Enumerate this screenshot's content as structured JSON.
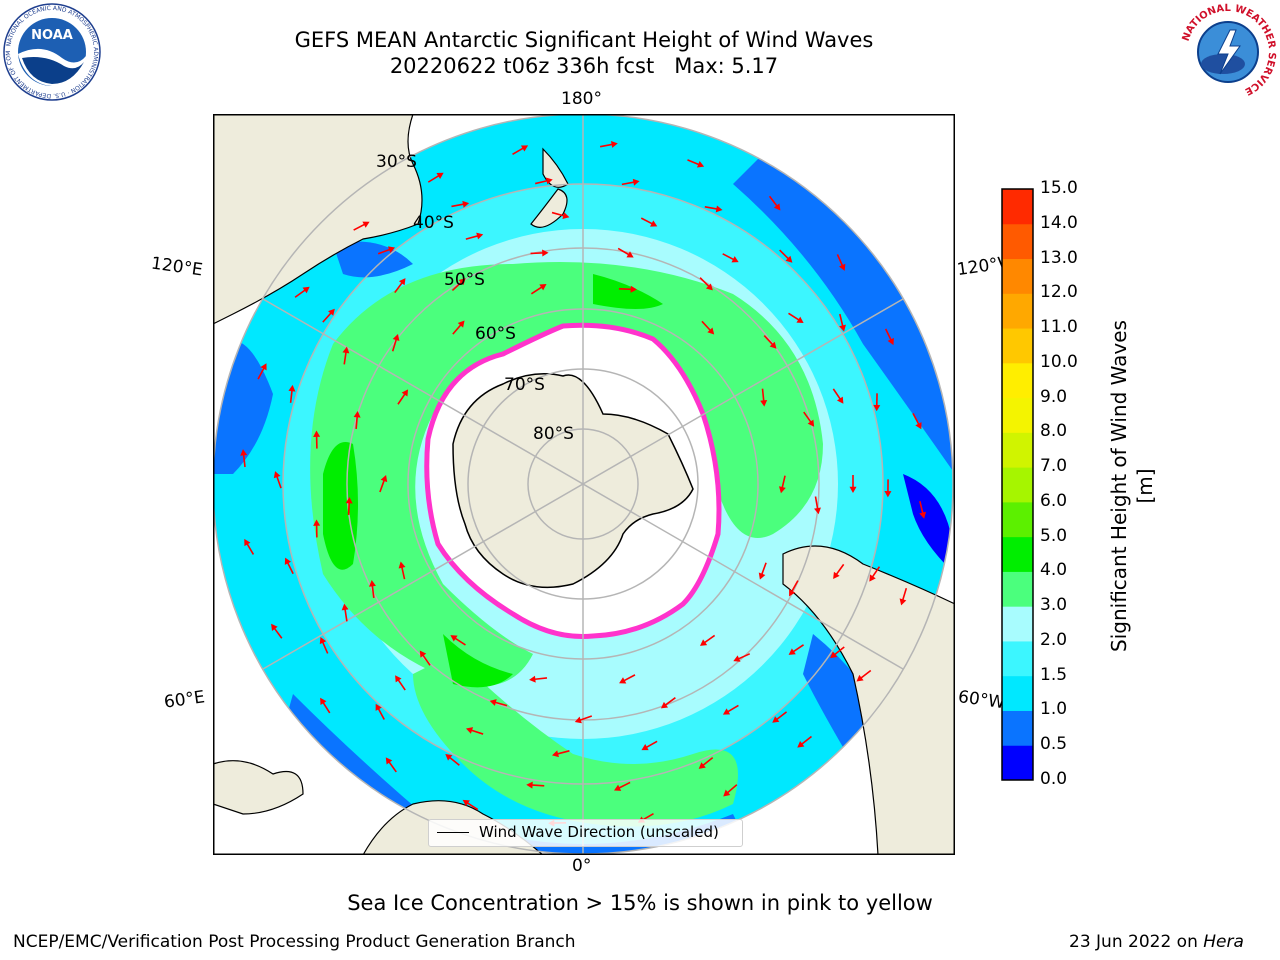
{
  "title": {
    "line1": "GEFS MEAN Antarctic Significant Height of Wind Waves",
    "line2": "20220622 t06z 336h fcst   Max: 5.17"
  },
  "logos": {
    "left": {
      "name": "noaa-logo",
      "ring_text": "NATIONAL OCEANIC AND ATMOSPHERIC ADMINISTRATION · U.S. DEPARTMENT OF COMMERCE",
      "center_text": "NOAA"
    },
    "right": {
      "name": "nws-logo",
      "ring_text": "NATIONAL WEATHER SERVICE"
    }
  },
  "map": {
    "projection": "south polar stereographic",
    "longitude_labels": {
      "top": "180°",
      "bottom": "0°",
      "upper_left": "120°E",
      "upper_right": "120°W",
      "lower_left": "60°E",
      "lower_right": "60°W"
    },
    "latitude_labels": [
      "30°S",
      "40°S",
      "50°S",
      "60°S",
      "70°S",
      "80°S"
    ],
    "legend": {
      "label": "Wind Wave Direction (unscaled)"
    },
    "colors": {
      "land": "#eeecdc",
      "ice": "#ffffff",
      "ice_edge": "#ff33cc",
      "arrow": "#ff0000",
      "grid": "#b5b5b5"
    }
  },
  "colorbar": {
    "label": "Significant Height of Wind Waves [m]",
    "ticks": [
      "0.0",
      "0.5",
      "1.0",
      "1.5",
      "2.0",
      "3.0",
      "4.0",
      "5.0",
      "6.0",
      "7.0",
      "8.0",
      "9.0",
      "10.0",
      "11.0",
      "12.0",
      "13.0",
      "14.0",
      "15.0"
    ],
    "colors": [
      "#0000ff",
      "#0a74ff",
      "#00e8ff",
      "#3cf6ff",
      "#a8fcfe",
      "#4bff7d",
      "#00ee00",
      "#5cf000",
      "#a6f500",
      "#d0f400",
      "#f4f400",
      "#ffee00",
      "#ffc800",
      "#ffa800",
      "#ff8800",
      "#ff5a00",
      "#ff2a00"
    ]
  },
  "captions": {
    "sea_ice": "Sea Ice Concentration > 15% is shown in pink to yellow",
    "footer_left": "NCEP/EMC/Verification Post Processing Product Generation Branch",
    "footer_right_date": "23 Jun 2022 on ",
    "footer_right_host": "Hera"
  }
}
